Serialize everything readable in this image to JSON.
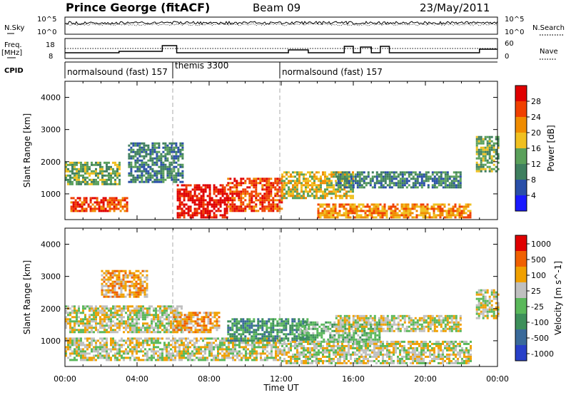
{
  "header": {
    "station": "Prince George (fitACF)",
    "beam": "Beam 09",
    "date": "23/May/2011"
  },
  "left_labels": {
    "nsky": "N.Sky",
    "freq_line1": "Freq.",
    "freq_line2": "[MHz]",
    "cpid": "CPID"
  },
  "right_labels": {
    "nsearch": "N.Search",
    "nave": "Nave"
  },
  "status_panels": {
    "noise_ticks_left": [
      "10^5",
      "10^0"
    ],
    "noise_ticks_right": [
      "10^5",
      "10^0"
    ],
    "freq_ticks_left": [
      "18",
      "8"
    ],
    "nave_ticks_right": [
      "60",
      "0"
    ]
  },
  "cpid_segments": [
    {
      "label": "normalsound (fast) 157",
      "start_h": 0,
      "end_h": 6
    },
    {
      "label": "themis 3300",
      "start_h": 6,
      "end_h": 12
    },
    {
      "label": "normalsound (fast) 157",
      "start_h": 12,
      "end_h": 24
    }
  ],
  "colors": {
    "power_scale": [
      "#1a1aff",
      "#2a4fa8",
      "#3f7f5f",
      "#5aa05a",
      "#f0c020",
      "#f08c00",
      "#f04000",
      "#e00000"
    ],
    "velocity_scale": [
      "#2840c8",
      "#3a6a9a",
      "#3d8f5a",
      "#5ab85a",
      "#c0c0c0",
      "#f0a000",
      "#f06000",
      "#e00000"
    ]
  },
  "chart_data": [
    {
      "type": "heatmap",
      "title": "",
      "xlabel": "",
      "ylabel": "Slant Range [km]",
      "x_ticks": [
        "00:00",
        "04:00",
        "08:00",
        "12:00",
        "16:00",
        "20:00",
        "00:00"
      ],
      "y_ticks": [
        "1000",
        "2000",
        "3000",
        "4000"
      ],
      "ylim": [
        200,
        4500
      ],
      "xlim_hours": [
        0,
        24
      ],
      "colorbar_label": "Power [dB]",
      "colorbar_ticks": [
        "4",
        "8",
        "12",
        "16",
        "20",
        "24",
        "28"
      ],
      "regions": [
        {
          "start_h": 0.0,
          "end_h": 3.0,
          "range_km": [
            1300,
            2000
          ],
          "level": 3
        },
        {
          "start_h": 0.3,
          "end_h": 3.5,
          "range_km": [
            500,
            900
          ],
          "level": 6
        },
        {
          "start_h": 3.5,
          "end_h": 6.5,
          "range_km": [
            1400,
            2600
          ],
          "level": 2
        },
        {
          "start_h": 6.2,
          "end_h": 9.0,
          "range_km": [
            250,
            1300
          ],
          "level": 7
        },
        {
          "start_h": 9.0,
          "end_h": 12.0,
          "range_km": [
            500,
            1500
          ],
          "level": 6
        },
        {
          "start_h": 12.0,
          "end_h": 16.0,
          "range_km": [
            900,
            1700
          ],
          "level": 4
        },
        {
          "start_h": 14.0,
          "end_h": 22.5,
          "range_km": [
            300,
            700
          ],
          "level": 5
        },
        {
          "start_h": 15.0,
          "end_h": 22.0,
          "range_km": [
            1200,
            1700
          ],
          "level": 2
        },
        {
          "start_h": 22.8,
          "end_h": 24.0,
          "range_km": [
            1700,
            2800
          ],
          "level": 3
        }
      ]
    },
    {
      "type": "heatmap",
      "title": "",
      "xlabel": "Time UT",
      "ylabel": "Slant Range [km]",
      "x_ticks": [
        "00:00",
        "04:00",
        "08:00",
        "12:00",
        "16:00",
        "20:00",
        "00:00"
      ],
      "y_ticks": [
        "1000",
        "2000",
        "3000",
        "4000"
      ],
      "ylim": [
        200,
        4500
      ],
      "xlim_hours": [
        0,
        24
      ],
      "colorbar_label": "Velocity [m s^-1]",
      "colorbar_ticks": [
        "1000",
        "500",
        "100",
        "25",
        "-25",
        "-100",
        "-500",
        "-1000"
      ],
      "regions": [
        {
          "start_h": 0.0,
          "end_h": 6.5,
          "range_km": [
            1300,
            2100
          ],
          "level": 4
        },
        {
          "start_h": 0.0,
          "end_h": 12.0,
          "range_km": [
            400,
            1100
          ],
          "level": 4
        },
        {
          "start_h": 2.0,
          "end_h": 4.5,
          "range_km": [
            2400,
            3200
          ],
          "level": 5
        },
        {
          "start_h": 6.0,
          "end_h": 8.5,
          "range_km": [
            1300,
            1900
          ],
          "level": 5
        },
        {
          "start_h": 9.0,
          "end_h": 13.5,
          "range_km": [
            1000,
            1700
          ],
          "level": 2
        },
        {
          "start_h": 13.0,
          "end_h": 17.5,
          "range_km": [
            1000,
            1600
          ],
          "level": 3
        },
        {
          "start_h": 12.0,
          "end_h": 22.5,
          "range_km": [
            300,
            1000
          ],
          "level": 4
        },
        {
          "start_h": 15.0,
          "end_h": 22.0,
          "range_km": [
            1300,
            1800
          ],
          "level": 4
        },
        {
          "start_h": 22.8,
          "end_h": 24.0,
          "range_km": [
            1700,
            2600
          ],
          "level": 4
        }
      ]
    }
  ]
}
